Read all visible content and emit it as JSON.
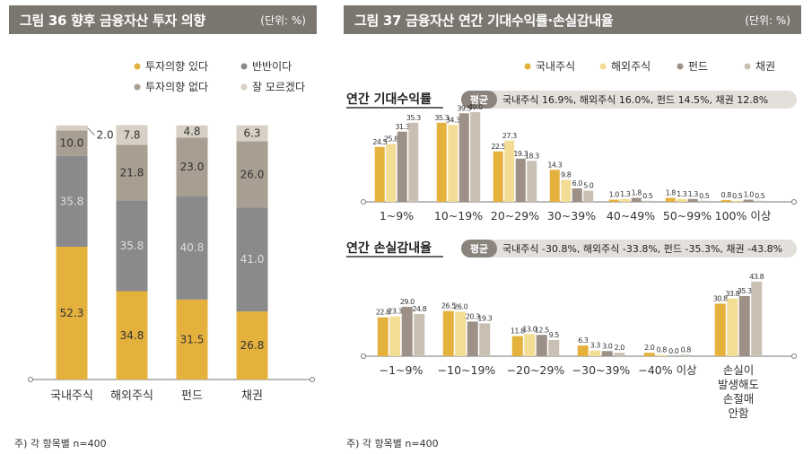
{
  "fig36": {
    "title": "그림 36  향후 금융자산 투자 의향",
    "unit": "(단위: %)",
    "footnote": "주) 각 항목별 n=400"
  },
  "fig37": {
    "title": "그림 37  금융자산 연간 기대수익률·손실감내율",
    "unit": "(단위: %)",
    "footnote": "주) 각 항목별 n=400",
    "sub1_title": "연간 기대수익률",
    "sub1_avg_label": "평균",
    "sub1_avg_text": "국내주식 16.9%, 해외주식 16.0%, 펀드 14.5%, 채권 12.8%",
    "sub2_title": "연간 손실감내율",
    "sub2_avg_label": "평균",
    "sub2_avg_text": "국내주식 -30.8%, 해외주식 -33.8%, 펀드 -35.3%, 채권 -43.8%"
  },
  "chart_data": [
    {
      "type": "bar",
      "stacked": true,
      "categories": [
        "국내주식",
        "해외주식",
        "펀드",
        "채권"
      ],
      "series": [
        {
          "name": "투자의향 있다",
          "color": "#e5b13d",
          "values": [
            52.3,
            34.8,
            31.5,
            26.8
          ]
        },
        {
          "name": "반반이다",
          "color": "#8a8a8c",
          "values": [
            35.8,
            35.8,
            40.8,
            41.0
          ]
        },
        {
          "name": "투자의향 없다",
          "color": "#a99e92",
          "values": [
            10.0,
            21.8,
            23.0,
            26.0
          ]
        },
        {
          "name": "잘 모르겠다",
          "color": "#d7d0c4",
          "values": [
            2.0,
            7.8,
            4.8,
            6.3
          ]
        }
      ],
      "ylim": [
        0,
        100
      ],
      "legend": "top-right"
    },
    {
      "type": "bar",
      "categories": [
        "1~9%",
        "10~19%",
        "20~29%",
        "30~39%",
        "40~49%",
        "50~99%",
        "100% 이상"
      ],
      "series": [
        {
          "name": "국내주식",
          "color": "#e5b13d",
          "values": [
            24.5,
            35.3,
            22.5,
            14.3,
            1.0,
            1.8,
            0.8
          ]
        },
        {
          "name": "해외주식",
          "color": "#f3dc94",
          "values": [
            25.8,
            34.3,
            27.3,
            9.8,
            1.3,
            1.3,
            0.5
          ]
        },
        {
          "name": "펀드",
          "color": "#9d9187",
          "values": [
            31.3,
            39.5,
            19.3,
            6.0,
            1.8,
            1.3,
            1.0
          ]
        },
        {
          "name": "채권",
          "color": "#c9c0b3",
          "values": [
            35.3,
            40.0,
            18.3,
            5.0,
            0.5,
            0.5,
            0.5
          ]
        }
      ],
      "legend": "top-right"
    },
    {
      "type": "bar",
      "categories": [
        "−1~9%",
        "−10~19%",
        "−20~29%",
        "−30~39%",
        "−40% 이상",
        "손실이 발생해도 손절매 안함"
      ],
      "series": [
        {
          "name": "국내주식",
          "color": "#e5b13d",
          "values": [
            22.8,
            26.5,
            11.8,
            6.3,
            2.0,
            30.8
          ]
        },
        {
          "name": "해외주식",
          "color": "#f3dc94",
          "values": [
            23.3,
            26.0,
            13.0,
            3.3,
            0.8,
            33.8
          ]
        },
        {
          "name": "펀드",
          "color": "#9d9187",
          "values": [
            29.0,
            20.3,
            12.5,
            3.0,
            0.0,
            35.3
          ]
        },
        {
          "name": "채권",
          "color": "#c9c0b3",
          "values": [
            24.8,
            19.3,
            9.5,
            2.0,
            0.8,
            43.8
          ]
        }
      ]
    }
  ]
}
